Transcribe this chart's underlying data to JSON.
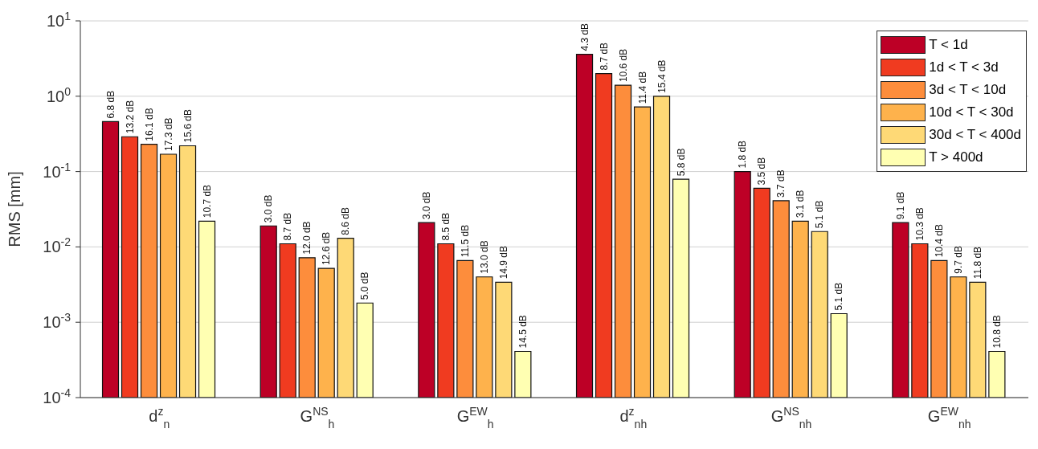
{
  "chart_data": {
    "type": "bar",
    "ylabel": "RMS [mm]",
    "categories": [
      "d$^{z}$$_{n}$",
      "G$^{NS}$$_{h}$",
      "G$^{EW}$$_{h}$",
      "d$^{z}$$_{nh}$",
      "G$^{NS}$$_{nh}$",
      "G$^{EW}$$_{nh}$"
    ],
    "series": [
      {
        "name": "T < 1d",
        "color": "#bd0026",
        "values": [
          0.46,
          0.019,
          0.021,
          3.6,
          0.1,
          0.021
        ]
      },
      {
        "name": "1d < T < 3d",
        "color": "#f03b20",
        "values": [
          0.29,
          0.011,
          0.011,
          2.0,
          0.06,
          0.011
        ]
      },
      {
        "name": "3d < T < 10d",
        "color": "#fd8d3c",
        "values": [
          0.23,
          0.0072,
          0.0066,
          1.4,
          0.041,
          0.0066
        ]
      },
      {
        "name": "10d < T < 30d",
        "color": "#feb24c",
        "values": [
          0.17,
          0.0052,
          0.004,
          0.72,
          0.022,
          0.004
        ]
      },
      {
        "name": "30d < T < 400d",
        "color": "#fed976",
        "values": [
          0.22,
          0.013,
          0.0034,
          1.0,
          0.016,
          0.0034
        ]
      },
      {
        "name": "T > 400d",
        "color": "#ffffb2",
        "values": [
          0.022,
          0.0018,
          0.00041,
          0.079,
          0.0013,
          0.00041
        ]
      }
    ],
    "annotations": [
      "6.8 dB",
      "13.2 dB",
      "16.1 dB",
      "17.3 dB",
      "15.6 dB",
      "10.7 dB",
      "3.0 dB",
      "8.7 dB",
      "12.0 dB",
      "12.6 dB",
      "8.6 dB",
      "5.0 dB",
      "3.0 dB",
      "8.5 dB",
      "11.5 dB",
      "13.0 dB",
      "14.9 dB",
      "14.5 dB",
      "4.3 dB",
      "8.7 dB",
      "10.6 dB",
      "11.4 dB",
      "15.4 dB",
      "5.8 dB",
      "1.8 dB",
      "3.5 dB",
      "3.7 dB",
      "3.1 dB",
      "5.1 dB",
      "5.1 dB",
      "9.1 dB",
      "10.3 dB",
      "10.4 dB",
      "9.7 dB",
      "11.8 dB",
      "10.8 dB"
    ],
    "log": "y",
    "ylim": [
      0.0001,
      10
    ],
    "yticks": [
      {
        "value": 0.0001,
        "label": "10$^{-4}$"
      },
      {
        "value": 0.001,
        "label": "10$^{-3}$"
      },
      {
        "value": 0.01,
        "label": "10$^{-2}$"
      },
      {
        "value": 0.1,
        "label": "10$^{-1}$"
      },
      {
        "value": 1,
        "label": "10$^{0}$"
      },
      {
        "value": 10,
        "label": "10$^{1}$"
      }
    ],
    "grid": "y",
    "legend": "top right"
  }
}
